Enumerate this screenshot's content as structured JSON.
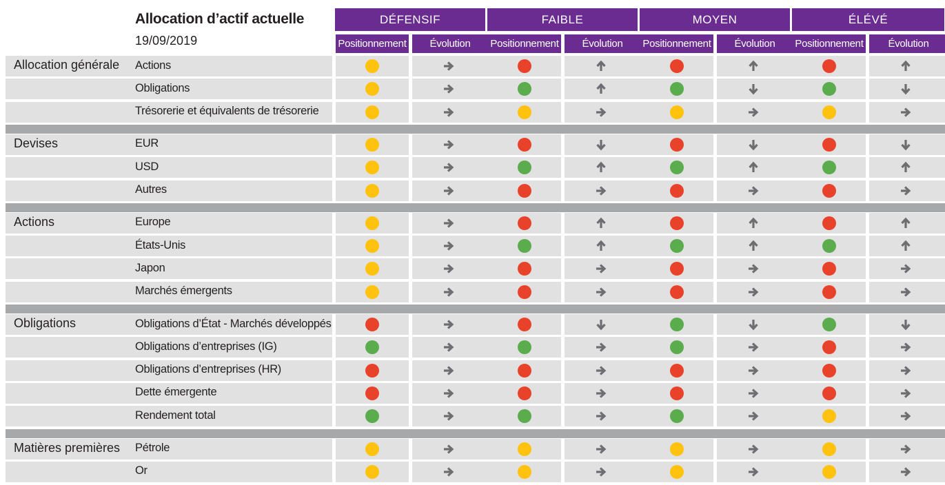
{
  "header": {
    "title": "Allocation d’actif actuelle",
    "date": "19/09/2019"
  },
  "colors": {
    "header_bg": "#6b2c91",
    "row_bg": "#e1e1e2",
    "band_bg": "#a7a8aa",
    "arrow": "#6d6e71",
    "status": {
      "yellow": "#ffc20e",
      "red": "#e8432a",
      "green": "#5aac4d"
    }
  },
  "profiles": [
    {
      "name": "DÉFENSIF",
      "sub": [
        "Positionnement",
        "Évolution"
      ]
    },
    {
      "name": "FAIBLE",
      "sub": [
        "Positionnement",
        "Évolution"
      ]
    },
    {
      "name": "MOYEN",
      "sub": [
        "Positionnement",
        "Évolution"
      ]
    },
    {
      "name": "ÉLÉVÉ",
      "sub": [
        "Positionnement",
        "Évolution"
      ]
    }
  ],
  "groups": [
    {
      "category": "Allocation générale",
      "rows": [
        {
          "label": "Actions",
          "values": [
            [
              "yellow",
              "right"
            ],
            [
              "red",
              "up"
            ],
            [
              "red",
              "up"
            ],
            [
              "red",
              "up"
            ]
          ]
        },
        {
          "label": "Obligations",
          "values": [
            [
              "yellow",
              "right"
            ],
            [
              "green",
              "up"
            ],
            [
              "green",
              "down"
            ],
            [
              "green",
              "down"
            ]
          ]
        },
        {
          "label": "Trésorerie et équivalents de trésorerie",
          "values": [
            [
              "yellow",
              "right"
            ],
            [
              "yellow",
              "right"
            ],
            [
              "yellow",
              "right"
            ],
            [
              "yellow",
              "right"
            ]
          ]
        }
      ]
    },
    {
      "category": "Devises",
      "rows": [
        {
          "label": "EUR",
          "values": [
            [
              "yellow",
              "right"
            ],
            [
              "red",
              "down"
            ],
            [
              "red",
              "down"
            ],
            [
              "red",
              "down"
            ]
          ]
        },
        {
          "label": "USD",
          "values": [
            [
              "yellow",
              "right"
            ],
            [
              "green",
              "up"
            ],
            [
              "green",
              "up"
            ],
            [
              "green",
              "up"
            ]
          ]
        },
        {
          "label": "Autres",
          "values": [
            [
              "yellow",
              "right"
            ],
            [
              "red",
              "right"
            ],
            [
              "red",
              "right"
            ],
            [
              "red",
              "right"
            ]
          ]
        }
      ]
    },
    {
      "category": "Actions",
      "rows": [
        {
          "label": "Europe",
          "values": [
            [
              "yellow",
              "right"
            ],
            [
              "red",
              "up"
            ],
            [
              "red",
              "up"
            ],
            [
              "red",
              "up"
            ]
          ]
        },
        {
          "label": "États-Unis",
          "values": [
            [
              "yellow",
              "right"
            ],
            [
              "green",
              "up"
            ],
            [
              "green",
              "up"
            ],
            [
              "green",
              "up"
            ]
          ]
        },
        {
          "label": "Japon",
          "values": [
            [
              "yellow",
              "right"
            ],
            [
              "red",
              "right"
            ],
            [
              "red",
              "right"
            ],
            [
              "red",
              "right"
            ]
          ]
        },
        {
          "label": "Marchés émergents",
          "values": [
            [
              "yellow",
              "right"
            ],
            [
              "red",
              "right"
            ],
            [
              "red",
              "right"
            ],
            [
              "red",
              "right"
            ]
          ]
        }
      ]
    },
    {
      "category": "Obligations",
      "rows": [
        {
          "label": "Obligations d’État - Marchés développés",
          "values": [
            [
              "red",
              "right"
            ],
            [
              "red",
              "down"
            ],
            [
              "green",
              "down"
            ],
            [
              "green",
              "down"
            ]
          ]
        },
        {
          "label": "Obligations d’entreprises (IG)",
          "values": [
            [
              "green",
              "right"
            ],
            [
              "green",
              "right"
            ],
            [
              "green",
              "right"
            ],
            [
              "red",
              "right"
            ]
          ]
        },
        {
          "label": "Obligations d’entreprises (HR)",
          "values": [
            [
              "red",
              "right"
            ],
            [
              "red",
              "right"
            ],
            [
              "red",
              "right"
            ],
            [
              "red",
              "right"
            ]
          ]
        },
        {
          "label": "Dette émergente",
          "values": [
            [
              "red",
              "right"
            ],
            [
              "red",
              "right"
            ],
            [
              "red",
              "right"
            ],
            [
              "red",
              "right"
            ]
          ]
        },
        {
          "label": "Rendement total",
          "values": [
            [
              "green",
              "right"
            ],
            [
              "green",
              "right"
            ],
            [
              "green",
              "right"
            ],
            [
              "yellow",
              "right"
            ]
          ]
        }
      ]
    },
    {
      "category": "Matières premières",
      "rows": [
        {
          "label": "Pétrole",
          "values": [
            [
              "yellow",
              "right"
            ],
            [
              "yellow",
              "right"
            ],
            [
              "yellow",
              "right"
            ],
            [
              "yellow",
              "right"
            ]
          ]
        },
        {
          "label": "Or",
          "values": [
            [
              "yellow",
              "right"
            ],
            [
              "yellow",
              "right"
            ],
            [
              "yellow",
              "right"
            ],
            [
              "yellow",
              "right"
            ]
          ]
        }
      ]
    }
  ]
}
